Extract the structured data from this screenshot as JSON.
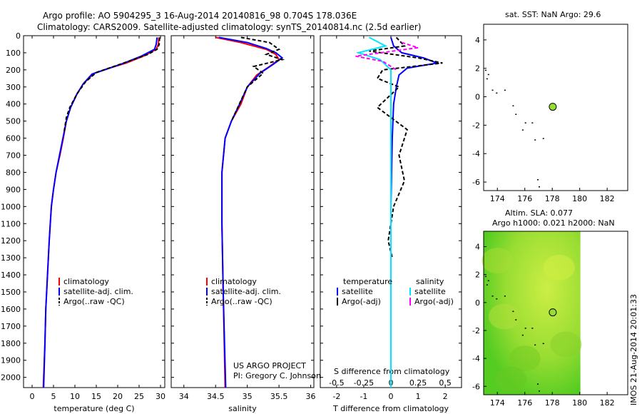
{
  "header": {
    "line1": "Argo profile: AO 5904295_3 16-Aug-2014 20140816_98 0.704S 178.036E",
    "line2": "Climatology: CARS2009. Satellite-adjusted climatology: synTS_20140814.nc (2.5d earlier)"
  },
  "side_stamp": "IMOS 21-Aug-2014 20:01:33",
  "credit": {
    "line1": "US ARGO PROJECT",
    "line2": "PI: Gregory C. Johnson"
  },
  "colors": {
    "climatology": "#ff0000",
    "satellite": "#0000ff",
    "argo": "#000000",
    "sal_satellite": "#00e5ff",
    "sal_argo": "#ff00ff",
    "marker": "#99dd33"
  },
  "chart_data": [
    {
      "id": "temperature",
      "type": "line",
      "xlabel": "temperature (deg C)",
      "ylabel": "",
      "xlim": [
        -2,
        31
      ],
      "ylim": [
        2060,
        0
      ],
      "xticks": [
        0,
        5,
        10,
        15,
        20,
        25,
        30
      ],
      "yticks": [
        0,
        100,
        200,
        300,
        400,
        500,
        600,
        700,
        800,
        900,
        1000,
        1100,
        1200,
        1300,
        1400,
        1500,
        1600,
        1700,
        1800,
        1900,
        2000
      ],
      "legend": [
        "climatology",
        "satellite-adj. clim.",
        "Argo(..raw -QC)"
      ],
      "series": [
        {
          "name": "climatology",
          "color": "#ff0000",
          "dash": "",
          "points": [
            [
              29.6,
              10
            ],
            [
              29.5,
              50
            ],
            [
              29.0,
              80
            ],
            [
              26.0,
              120
            ],
            [
              22.0,
              160
            ],
            [
              18.0,
              190
            ],
            [
              14.5,
              220
            ],
            [
              12.0,
              280
            ],
            [
              10.5,
              340
            ],
            [
              9.0,
              420
            ],
            [
              8.0,
              500
            ],
            [
              7.3,
              600
            ],
            [
              6.5,
              700
            ],
            [
              5.6,
              800
            ],
            [
              5.0,
              900
            ],
            [
              4.5,
              1000
            ],
            [
              4.0,
              1200
            ],
            [
              3.6,
              1400
            ],
            [
              3.2,
              1600
            ],
            [
              3.0,
              1800
            ],
            [
              2.6,
              2060
            ]
          ]
        },
        {
          "name": "satellite-adj. clim.",
          "color": "#0000ff",
          "dash": "",
          "points": [
            [
              29.2,
              10
            ],
            [
              29.0,
              50
            ],
            [
              28.6,
              80
            ],
            [
              25.5,
              120
            ],
            [
              21.5,
              160
            ],
            [
              17.5,
              195
            ],
            [
              14.0,
              225
            ],
            [
              12.0,
              280
            ],
            [
              10.5,
              340
            ],
            [
              9.0,
              420
            ],
            [
              8.0,
              500
            ],
            [
              7.2,
              600
            ],
            [
              6.4,
              700
            ],
            [
              5.6,
              800
            ],
            [
              5.0,
              900
            ],
            [
              4.5,
              1000
            ],
            [
              4.0,
              1200
            ],
            [
              3.6,
              1400
            ],
            [
              3.2,
              1600
            ],
            [
              3.0,
              1800
            ],
            [
              2.7,
              2060
            ]
          ]
        },
        {
          "name": "Argo(..raw -QC)",
          "color": "#000000",
          "dash": "5,3",
          "points": [
            [
              29.8,
              10
            ],
            [
              29.7,
              50
            ],
            [
              29.2,
              80
            ],
            [
              27.0,
              110
            ],
            [
              22.5,
              150
            ],
            [
              18.5,
              185
            ],
            [
              15.0,
              215
            ],
            [
              12.5,
              270
            ],
            [
              10.5,
              340
            ],
            [
              8.8,
              420
            ],
            [
              8.0,
              480
            ],
            [
              7.5,
              560
            ]
          ]
        }
      ]
    },
    {
      "id": "salinity",
      "type": "line",
      "xlabel": "salinity",
      "ylabel": "",
      "xlim": [
        33.8,
        36.05
      ],
      "ylim": [
        2060,
        0
      ],
      "xticks": [
        34,
        34.5,
        35,
        35.5,
        36
      ],
      "legend": [
        "climatology",
        "satellite-adj. clim.",
        "Argo(..raw -QC)"
      ],
      "series": [
        {
          "name": "climatology",
          "color": "#ff0000",
          "dash": "",
          "points": [
            [
              34.5,
              10
            ],
            [
              34.9,
              40
            ],
            [
              35.3,
              80
            ],
            [
              35.45,
              110
            ],
            [
              35.5,
              140
            ],
            [
              35.35,
              180
            ],
            [
              35.15,
              230
            ],
            [
              35.0,
              300
            ],
            [
              34.9,
              400
            ],
            [
              34.75,
              500
            ],
            [
              34.65,
              600
            ],
            [
              34.6,
              800
            ],
            [
              34.6,
              1100
            ],
            [
              34.62,
              1500
            ],
            [
              34.65,
              2060
            ]
          ]
        },
        {
          "name": "satellite-adj. clim.",
          "color": "#0000ff",
          "dash": "",
          "points": [
            [
              34.55,
              10
            ],
            [
              35.0,
              40
            ],
            [
              35.3,
              75
            ],
            [
              35.45,
              100
            ],
            [
              35.55,
              130
            ],
            [
              35.4,
              170
            ],
            [
              35.2,
              220
            ],
            [
              35.0,
              300
            ],
            [
              34.88,
              400
            ],
            [
              34.75,
              500
            ],
            [
              34.65,
              600
            ],
            [
              34.6,
              800
            ],
            [
              34.6,
              1100
            ],
            [
              34.62,
              1500
            ],
            [
              34.66,
              2060
            ]
          ]
        },
        {
          "name": "Argo(..raw -QC)",
          "color": "#000000",
          "dash": "5,3",
          "points": [
            [
              34.9,
              10
            ],
            [
              35.35,
              40
            ],
            [
              35.5,
              80
            ],
            [
              35.3,
              110
            ],
            [
              35.55,
              140
            ],
            [
              35.1,
              180
            ],
            [
              35.25,
              220
            ],
            [
              35.0,
              300
            ],
            [
              34.85,
              420
            ],
            [
              34.75,
              500
            ]
          ]
        }
      ]
    },
    {
      "id": "differences",
      "type": "line",
      "xlabel": "T difference from climatology",
      "xlabel_top": "S difference from climatology",
      "ylabel": "",
      "xlim": [
        -2.6,
        2.6
      ],
      "ylim": [
        2060,
        0
      ],
      "xticks": [
        -2,
        -1,
        0,
        1,
        2
      ],
      "xticks_s": [
        -0.5,
        -0.25,
        0,
        0.25,
        0.5
      ],
      "legend_titles": [
        "temperature",
        "salinity"
      ],
      "legend": [
        "satellite",
        "Argo(-adj)",
        "satellite",
        "Argo(-adj)"
      ],
      "series": [
        {
          "name": "satellite",
          "color": "#0000ff",
          "dash": "",
          "points": [
            [
              0.0,
              10
            ],
            [
              0.1,
              60
            ],
            [
              0.4,
              100
            ],
            [
              1.2,
              130
            ],
            [
              1.7,
              160
            ],
            [
              0.6,
              190
            ],
            [
              0.3,
              230
            ],
            [
              0.2,
              300
            ],
            [
              0.1,
              400
            ],
            [
              0.05,
              600
            ],
            [
              0.0,
              1000
            ],
            [
              0.0,
              1500
            ],
            [
              0.0,
              2060
            ]
          ]
        },
        {
          "name": "Argo(-adj)",
          "color": "#000000",
          "dash": "5,3",
          "points": [
            [
              0.2,
              10
            ],
            [
              0.5,
              60
            ],
            [
              -0.8,
              90
            ],
            [
              1.0,
              130
            ],
            [
              1.9,
              160
            ],
            [
              -0.3,
              200
            ],
            [
              -0.5,
              250
            ],
            [
              0.3,
              300
            ],
            [
              -0.5,
              420
            ],
            [
              0.6,
              550
            ],
            [
              0.3,
              700
            ],
            [
              0.5,
              850
            ],
            [
              0.1,
              1000
            ],
            [
              -0.1,
              1200
            ],
            [
              0.05,
              1300
            ]
          ]
        },
        {
          "name": "satellite ",
          "color": "#00e5ff",
          "dash": "",
          "points": [
            [
              -0.8,
              10
            ],
            [
              -0.2,
              60
            ],
            [
              -1.2,
              100
            ],
            [
              -0.4,
              140
            ],
            [
              0.0,
              200
            ],
            [
              0.0,
              300
            ],
            [
              0.0,
              600
            ],
            [
              0.0,
              1000
            ],
            [
              0.0,
              1500
            ],
            [
              0.0,
              2060
            ]
          ]
        },
        {
          "name": "Argo(-adj) ",
          "color": "#ff00ff",
          "dash": "5,3",
          "points": [
            [
              0.4,
              40
            ],
            [
              1.0,
              70
            ],
            [
              -1.3,
              120
            ],
            [
              -0.3,
              150
            ],
            [
              0.2,
              200
            ]
          ]
        }
      ]
    },
    {
      "id": "sst_map",
      "type": "scatter",
      "title": "sat. SST: NaN Argo: 29.6",
      "xlim": [
        173,
        183.5
      ],
      "ylim": [
        -6.6,
        5.1
      ],
      "xticks": [
        174,
        176,
        178,
        180,
        182
      ],
      "yticks": [
        4,
        2,
        0,
        -2,
        -4,
        -6
      ],
      "marker": {
        "x": 178.036,
        "y": -0.704
      },
      "islands": [
        [
          173.1,
          1.9
        ],
        [
          173.3,
          1.6
        ],
        [
          173.2,
          1.3
        ],
        [
          173.6,
          0.5
        ],
        [
          173.9,
          0.3
        ],
        [
          174.5,
          0.5
        ],
        [
          175.1,
          -0.6
        ],
        [
          175.3,
          -1.2
        ],
        [
          176.0,
          -1.8
        ],
        [
          176.5,
          -1.8
        ],
        [
          175.8,
          -2.3
        ],
        [
          176.7,
          -3.0
        ],
        [
          177.3,
          -2.9
        ],
        [
          176.9,
          -5.8
        ],
        [
          177.0,
          -6.3
        ]
      ]
    },
    {
      "id": "sla_map",
      "type": "heatmap",
      "title_line1": "Altim. SLA: 0.077",
      "title_line2": "Argo h1000: 0.021 h2000: NaN",
      "xlim": [
        173,
        183.5
      ],
      "ylim": [
        -6.6,
        5.1
      ],
      "xticks": [
        174,
        176,
        178,
        180,
        182
      ],
      "yticks": [
        4,
        2,
        0,
        -2,
        -4,
        -6
      ],
      "marker": {
        "x": 178.036,
        "y": -0.704
      },
      "islands": [
        [
          173.1,
          1.9
        ],
        [
          173.3,
          1.6
        ],
        [
          173.2,
          1.3
        ],
        [
          173.6,
          0.5
        ],
        [
          173.9,
          0.3
        ],
        [
          174.5,
          0.5
        ],
        [
          175.1,
          -0.6
        ],
        [
          175.3,
          -1.2
        ],
        [
          176.0,
          -1.8
        ],
        [
          176.5,
          -1.8
        ],
        [
          175.8,
          -2.3
        ],
        [
          176.7,
          -3.0
        ],
        [
          177.3,
          -2.9
        ],
        [
          176.9,
          -5.8
        ],
        [
          177.0,
          -6.3
        ]
      ]
    }
  ]
}
